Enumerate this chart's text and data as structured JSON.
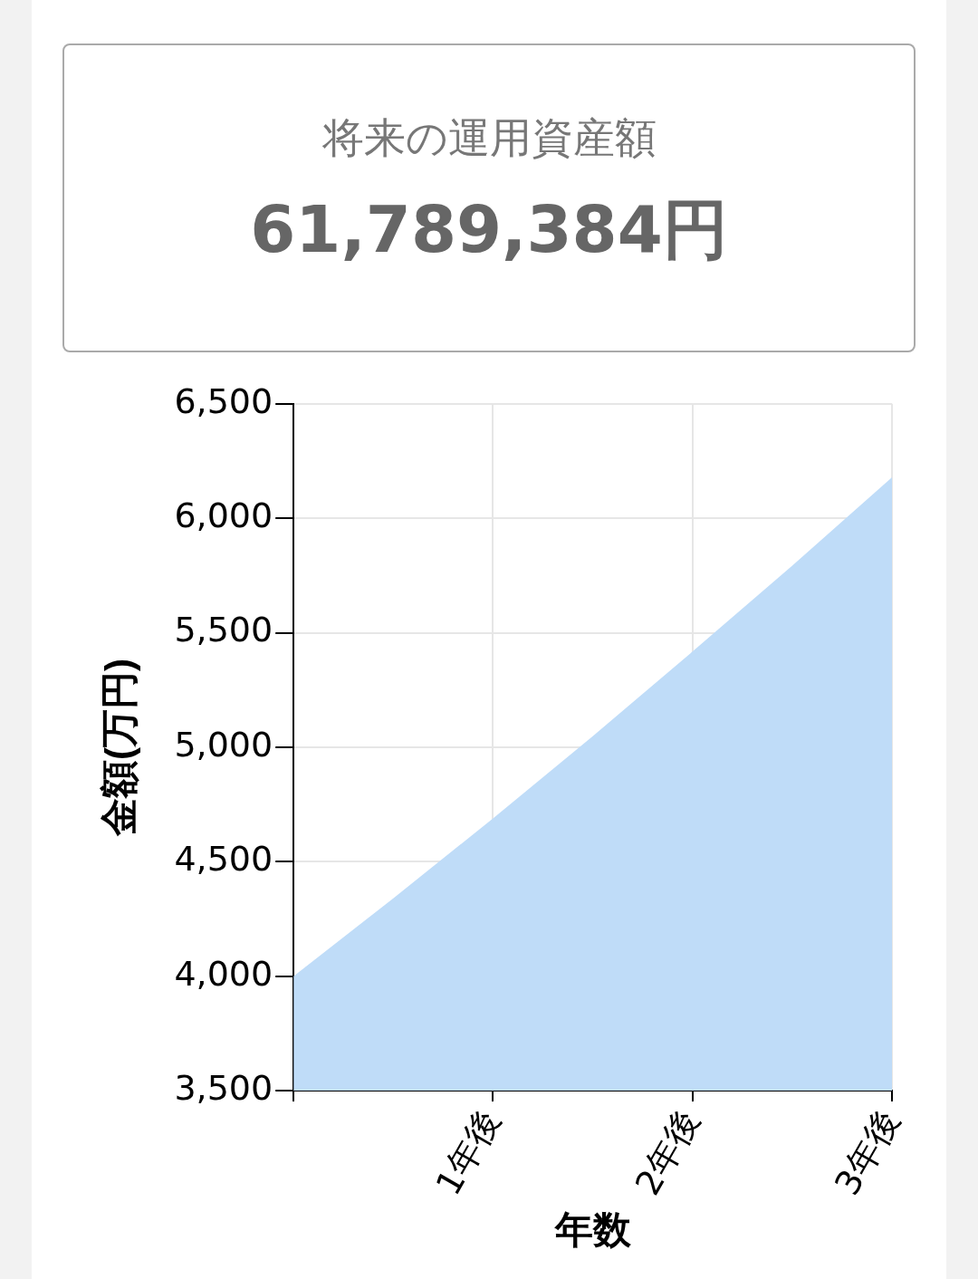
{
  "chart_data": {
    "type": "area",
    "title": "将来の運用資産額",
    "subtitle": "61,789,384円",
    "xlabel": "年数",
    "ylabel": "金額(万円)",
    "x": [
      0,
      0.5,
      1,
      1.5,
      2,
      2.5,
      3
    ],
    "series": [
      {
        "color": "#bfdcf8",
        "values": [
          4000,
          4340,
          4689,
          5048,
          5418,
          5793,
          6179
        ]
      }
    ],
    "xlim": [
      0,
      3
    ],
    "xticks": [
      {
        "value": 0,
        "label": null
      },
      {
        "value": 1,
        "label": "1年後"
      },
      {
        "value": 2,
        "label": "2年後"
      },
      {
        "value": 3,
        "label": "3年後"
      }
    ],
    "ylim": [
      3500,
      6500
    ],
    "yticks": [
      {
        "value": 3500,
        "label": "3,500"
      },
      {
        "value": 4000,
        "label": "4,000"
      },
      {
        "value": 4500,
        "label": "4,500"
      },
      {
        "value": 5000,
        "label": "5,000"
      },
      {
        "value": 5500,
        "label": "5,500"
      },
      {
        "value": 6000,
        "label": "6,000"
      },
      {
        "value": 6500,
        "label": "6,500"
      }
    ],
    "grid": true,
    "marker": "none"
  }
}
